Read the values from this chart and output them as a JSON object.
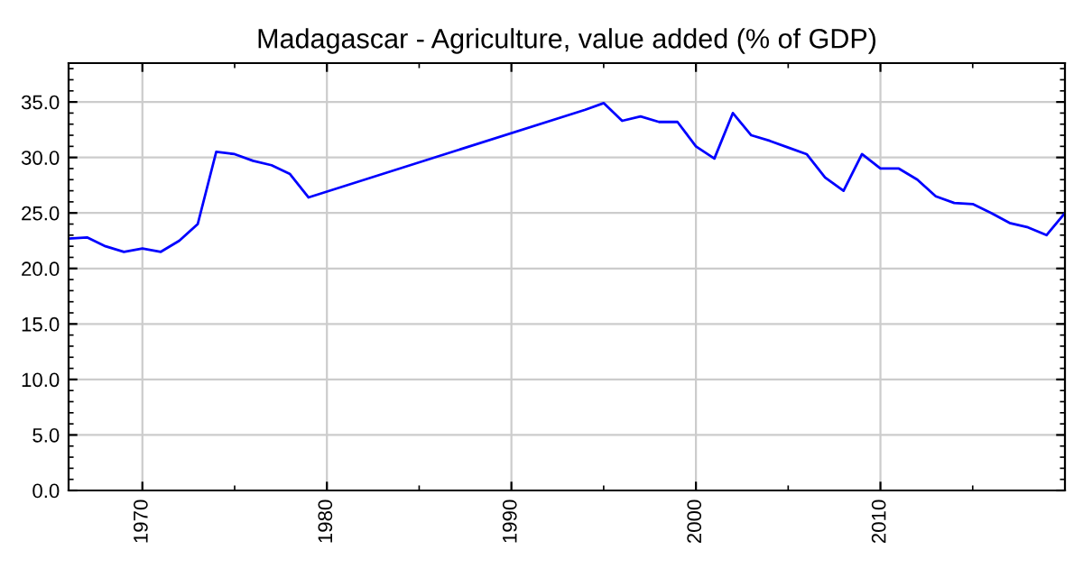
{
  "chart_data": {
    "type": "line",
    "title": "Madagascar - Agriculture, value added (% of GDP)",
    "x": [
      1966,
      1967,
      1968,
      1969,
      1970,
      1971,
      1972,
      1973,
      1974,
      1975,
      1976,
      1977,
      1978,
      1979,
      1994,
      1995,
      1996,
      1997,
      1998,
      1999,
      2000,
      2001,
      2002,
      2003,
      2004,
      2005,
      2006,
      2007,
      2008,
      2009,
      2010,
      2011,
      2012,
      2013,
      2014,
      2015,
      2016,
      2017,
      2018,
      2019,
      2020
    ],
    "series": [
      {
        "color": "#0000ff",
        "values": [
          22.7,
          22.8,
          22.0,
          21.5,
          21.8,
          21.5,
          22.5,
          24.0,
          30.5,
          30.3,
          29.7,
          29.3,
          28.5,
          26.4,
          34.3,
          34.9,
          33.3,
          33.7,
          33.2,
          33.2,
          31.0,
          29.9,
          34.0,
          32.0,
          31.5,
          30.9,
          30.3,
          28.2,
          27.0,
          30.3,
          29.0,
          29.0,
          28.0,
          26.5,
          25.9,
          25.8,
          25.0,
          24.1,
          23.7,
          23.0,
          25.0
        ]
      }
    ],
    "xlim": [
      1966,
      2020
    ],
    "xticks": [
      1970,
      1980,
      1990,
      2000,
      2010
    ],
    "ylim": [
      0,
      38.5
    ],
    "yticks": [
      {
        "value": 0,
        "label": "0.0"
      },
      {
        "value": 5,
        "label": "5.0"
      },
      {
        "value": 10,
        "label": "10.0"
      },
      {
        "value": 15,
        "label": "15.0"
      },
      {
        "value": 20,
        "label": "20.0"
      },
      {
        "value": 25,
        "label": "25.0"
      },
      {
        "value": 30,
        "label": "30.0"
      },
      {
        "value": 35,
        "label": "35.0"
      }
    ],
    "grid": true,
    "marker": "none",
    "line_style": "solid",
    "legend": false
  }
}
